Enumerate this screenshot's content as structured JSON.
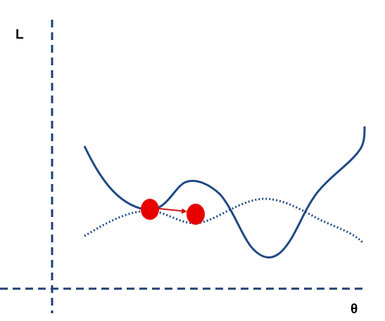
{
  "labels": {
    "y_axis": "L",
    "x_axis": "θ"
  },
  "colors": {
    "background": "#ffffff",
    "axis": "#1f3f73",
    "curve": "#1f4a82",
    "marker": "#e60000",
    "arrow": "#cc1111",
    "text": "#000000"
  },
  "style": {
    "axes": "dashed",
    "solid_curve": "solid",
    "dotted_curve": "dotted"
  },
  "markers": [
    {
      "name": "start-point"
    },
    {
      "name": "end-point"
    }
  ],
  "arrow": {
    "direction": "right"
  }
}
